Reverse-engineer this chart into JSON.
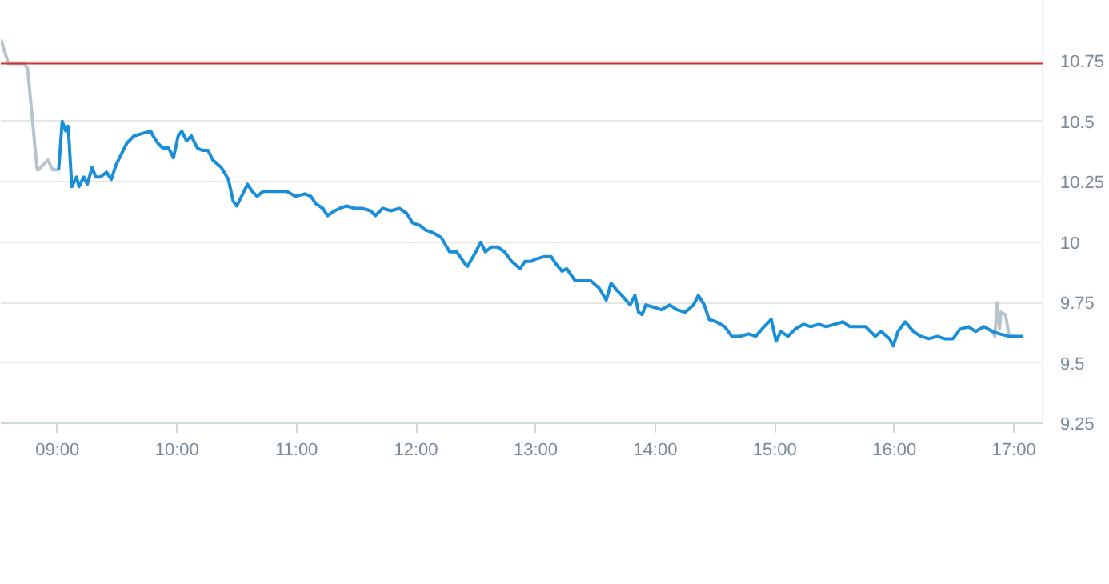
{
  "chart_data": {
    "type": "line",
    "xlim": [
      8.526,
      17.24
    ],
    "ylim": [
      9.25,
      11.0
    ],
    "xticks": [
      {
        "value": 9,
        "label": "09:00"
      },
      {
        "value": 10,
        "label": "10:00"
      },
      {
        "value": 11,
        "label": "11:00"
      },
      {
        "value": 12,
        "label": "12:00"
      },
      {
        "value": 13,
        "label": "13:00"
      },
      {
        "value": 14,
        "label": "14:00"
      },
      {
        "value": 15,
        "label": "15:00"
      },
      {
        "value": 16,
        "label": "16:00"
      },
      {
        "value": 17,
        "label": "17:00"
      }
    ],
    "yticks": [
      9.25,
      9.5,
      9.75,
      10,
      10.25,
      10.5,
      10.75
    ],
    "grid": "y",
    "ref_lines": [
      {
        "axis": "y",
        "value": 10.74,
        "color": "#d0312d"
      }
    ],
    "series": [
      {
        "color": "#b8c4cc",
        "x": [
          8.526,
          8.59,
          8.72,
          8.75,
          8.83,
          8.84,
          8.92,
          8.96,
          9.01
        ],
        "values": [
          10.84,
          10.74,
          10.74,
          10.72,
          10.3,
          10.3,
          10.34,
          10.3,
          10.3
        ]
      },
      {
        "color": "#b8c4cc",
        "x": [
          16.82,
          16.84,
          16.86,
          16.88,
          16.89,
          16.93,
          16.96,
          17.01
        ],
        "values": [
          9.63,
          9.61,
          9.75,
          9.64,
          9.71,
          9.7,
          9.61,
          9.61
        ]
      },
      {
        "color": "#1a8fd8",
        "x": [
          9.01,
          9.04,
          9.07,
          9.09,
          9.12,
          9.16,
          9.18,
          9.22,
          9.25,
          9.29,
          9.32,
          9.36,
          9.41,
          9.45,
          9.49,
          9.54,
          9.58,
          9.64,
          9.71,
          9.78,
          9.8,
          9.84,
          9.88,
          9.93,
          9.97,
          10.01,
          10.04,
          10.08,
          10.12,
          10.17,
          10.21,
          10.26,
          10.3,
          10.37,
          10.43,
          10.47,
          10.5,
          10.54,
          10.59,
          10.63,
          10.67,
          10.72,
          10.79,
          10.86,
          10.92,
          10.99,
          11.07,
          11.12,
          11.16,
          11.22,
          11.26,
          11.32,
          11.36,
          11.42,
          11.49,
          11.55,
          11.62,
          11.66,
          11.72,
          11.79,
          11.86,
          11.92,
          11.97,
          12.03,
          12.08,
          12.14,
          12.21,
          12.28,
          12.34,
          12.41,
          12.43,
          12.5,
          12.54,
          12.58,
          12.63,
          12.68,
          12.74,
          12.8,
          12.87,
          12.91,
          12.96,
          13.0,
          13.07,
          13.13,
          13.17,
          13.22,
          13.26,
          13.33,
          13.39,
          13.46,
          13.53,
          13.59,
          13.63,
          13.68,
          13.72,
          13.79,
          13.83,
          13.86,
          13.89,
          13.92,
          13.99,
          14.05,
          14.12,
          14.18,
          14.25,
          14.32,
          14.36,
          14.41,
          14.45,
          14.51,
          14.58,
          14.64,
          14.71,
          14.78,
          14.84,
          14.91,
          14.97,
          15.01,
          15.05,
          15.11,
          15.17,
          15.24,
          15.3,
          15.37,
          15.43,
          15.5,
          15.57,
          15.63,
          15.7,
          15.76,
          15.8,
          15.84,
          15.89,
          15.96,
          15.99,
          16.03,
          16.09,
          16.16,
          16.22,
          16.29,
          16.36,
          16.42,
          16.49,
          16.55,
          16.62,
          16.68,
          16.75,
          16.82,
          16.88,
          16.96,
          17.01,
          17.05,
          17.08
        ],
        "values": [
          10.3,
          10.5,
          10.46,
          10.48,
          10.23,
          10.27,
          10.23,
          10.27,
          10.24,
          10.31,
          10.27,
          10.27,
          10.29,
          10.26,
          10.32,
          10.37,
          10.41,
          10.44,
          10.45,
          10.46,
          10.44,
          10.41,
          10.39,
          10.39,
          10.35,
          10.44,
          10.46,
          10.42,
          10.44,
          10.39,
          10.38,
          10.38,
          10.34,
          10.31,
          10.26,
          10.17,
          10.15,
          10.19,
          10.24,
          10.21,
          10.19,
          10.21,
          10.21,
          10.21,
          10.21,
          10.19,
          10.2,
          10.19,
          10.16,
          10.14,
          10.11,
          10.13,
          10.14,
          10.15,
          10.14,
          10.14,
          10.13,
          10.11,
          10.14,
          10.13,
          10.14,
          10.12,
          10.08,
          10.07,
          10.05,
          10.04,
          10.02,
          9.96,
          9.96,
          9.91,
          9.9,
          9.96,
          10.0,
          9.96,
          9.98,
          9.98,
          9.96,
          9.92,
          9.89,
          9.92,
          9.92,
          9.93,
          9.94,
          9.94,
          9.91,
          9.88,
          9.89,
          9.84,
          9.84,
          9.84,
          9.81,
          9.76,
          9.83,
          9.8,
          9.78,
          9.74,
          9.78,
          9.71,
          9.7,
          9.74,
          9.73,
          9.72,
          9.74,
          9.72,
          9.71,
          9.74,
          9.78,
          9.74,
          9.68,
          9.67,
          9.65,
          9.61,
          9.61,
          9.62,
          9.61,
          9.65,
          9.68,
          9.59,
          9.63,
          9.61,
          9.64,
          9.66,
          9.65,
          9.66,
          9.65,
          9.66,
          9.67,
          9.65,
          9.65,
          9.65,
          9.63,
          9.61,
          9.63,
          9.6,
          9.57,
          9.63,
          9.67,
          9.63,
          9.61,
          9.6,
          9.61,
          9.6,
          9.6,
          9.64,
          9.65,
          9.63,
          9.65,
          9.63,
          9.62,
          9.61,
          9.61,
          9.61,
          9.61
        ]
      }
    ]
  }
}
